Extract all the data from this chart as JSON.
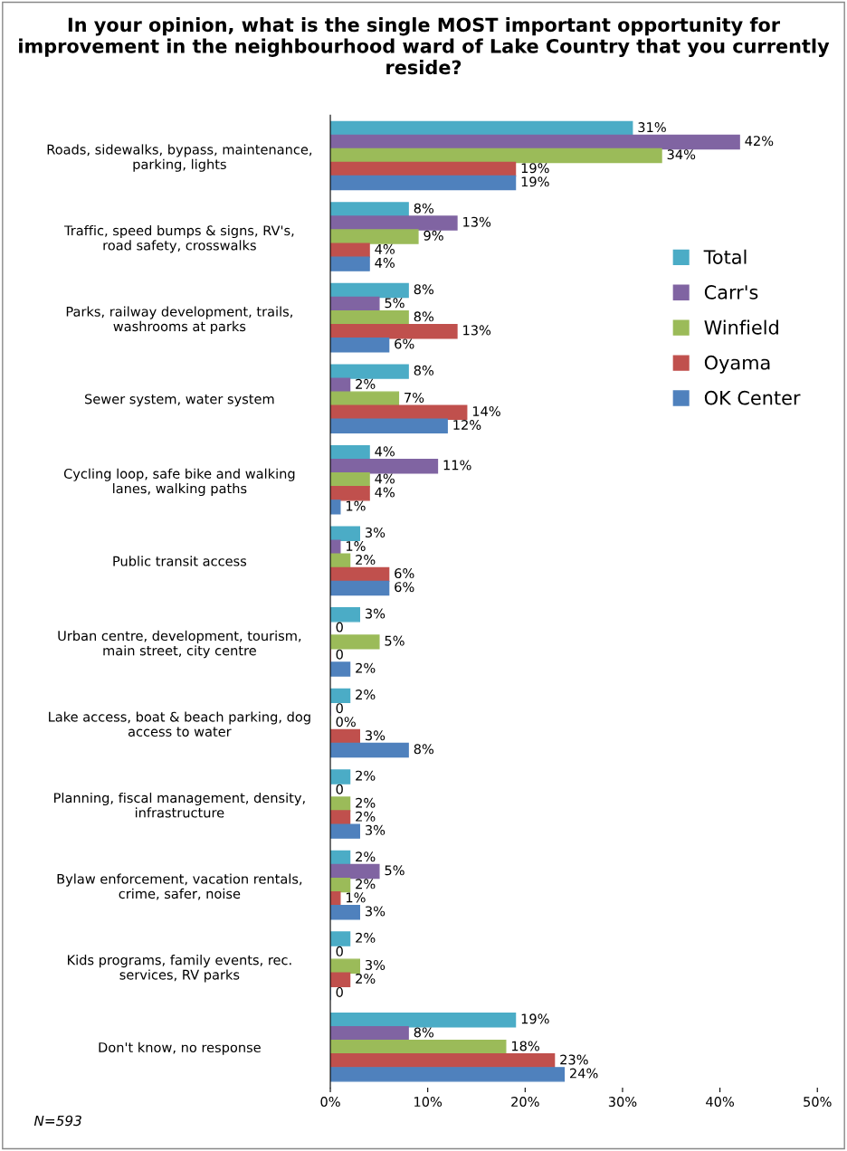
{
  "chart_data": {
    "type": "bar",
    "orientation": "horizontal",
    "title": "In your opinion, what is the single MOST important opportunity for improvement in the neighbourhood ward of Lake Country that you currently reside?",
    "categories": [
      "Roads, sidewalks, bypass, maintenance, parking, lights",
      "Traffic, speed bumps & signs, RV's, road safety, crosswalks",
      "Parks, railway development, trails, washrooms at parks",
      "Sewer system, water system",
      "Cycling loop, safe bike and walking lanes, walking paths",
      "Public transit access",
      "Urban centre, development, tourism, main street, city centre",
      "Lake access, boat & beach parking, dog access to water",
      "Planning, fiscal management, density, infrastructure",
      "Bylaw enforcement, vacation rentals, crime, safer, noise",
      "Kids programs, family events, rec. services, RV parks",
      "Don't know, no response"
    ],
    "series": [
      {
        "name": "Total",
        "color": "#4bacc6",
        "values": [
          31,
          8,
          8,
          8,
          4,
          3,
          3,
          2,
          2,
          2,
          2,
          19
        ],
        "value_labels": [
          "31%",
          "8%",
          "8%",
          "8%",
          "4%",
          "3%",
          "3%",
          "2%",
          "2%",
          "2%",
          "2%",
          "19%"
        ]
      },
      {
        "name": "Carr's",
        "color": "#8064a2",
        "values": [
          42,
          13,
          5,
          2,
          11,
          1,
          0,
          0,
          0,
          5,
          0,
          8
        ],
        "value_labels": [
          "42%",
          "13%",
          "5%",
          "2%",
          "11%",
          "1%",
          "0",
          "0",
          "0",
          "5%",
          "0",
          "8%"
        ]
      },
      {
        "name": "Winfield",
        "color": "#9bbb59",
        "values": [
          34,
          9,
          8,
          7,
          4,
          2,
          5,
          0,
          2,
          2,
          3,
          18
        ],
        "value_labels": [
          "34%",
          "9%",
          "8%",
          "7%",
          "4%",
          "2%",
          "5%",
          "0%",
          "2%",
          "2%",
          "3%",
          "18%"
        ]
      },
      {
        "name": "Oyama",
        "color": "#c0504d",
        "values": [
          19,
          4,
          13,
          14,
          4,
          6,
          0,
          3,
          2,
          1,
          2,
          23
        ],
        "value_labels": [
          "19%",
          "4%",
          "13%",
          "14%",
          "4%",
          "6%",
          "0",
          "3%",
          "2%",
          "1%",
          "2%",
          "23%"
        ]
      },
      {
        "name": "OK Center",
        "color": "#4f81bd",
        "values": [
          19,
          4,
          6,
          12,
          1,
          6,
          2,
          8,
          3,
          3,
          0,
          24
        ],
        "value_labels": [
          "19%",
          "4%",
          "6%",
          "12%",
          "1%",
          "6%",
          "2%",
          "8%",
          "3%",
          "3%",
          "0",
          "24%"
        ]
      }
    ],
    "xlim": [
      0,
      50
    ],
    "xticks": [
      {
        "value": 0,
        "label": "0%"
      },
      {
        "value": 10,
        "label": "10%"
      },
      {
        "value": 20,
        "label": "20%"
      },
      {
        "value": 30,
        "label": "30%"
      },
      {
        "value": 40,
        "label": "40%"
      },
      {
        "value": 50,
        "label": "50%"
      }
    ],
    "grid": false,
    "legend": "right",
    "annotations": [
      "N=593"
    ]
  }
}
